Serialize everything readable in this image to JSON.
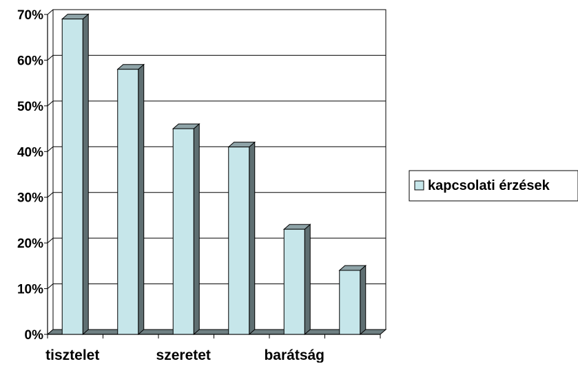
{
  "chart_data": {
    "type": "bar",
    "style": "3d",
    "categories": [
      "tisztelet",
      "",
      "szeretet",
      "",
      "barátság",
      ""
    ],
    "x_tick_labels": [
      "tisztelet",
      "szeretet",
      "barátság"
    ],
    "series": [
      {
        "name": "kapcsolati érzések",
        "values": [
          69,
          58,
          45,
          41,
          23,
          14
        ],
        "color": "#c6e6ea",
        "side_color": "#5f6f72",
        "top_color": "#8ea3a7"
      }
    ],
    "y_ticks": [
      "0%",
      "10%",
      "20%",
      "30%",
      "40%",
      "50%",
      "60%",
      "70%"
    ],
    "ylim": [
      0,
      70
    ],
    "y_unit": "%",
    "grid": true,
    "legend_position": "right",
    "title": "",
    "xlabel": "",
    "ylabel": ""
  }
}
